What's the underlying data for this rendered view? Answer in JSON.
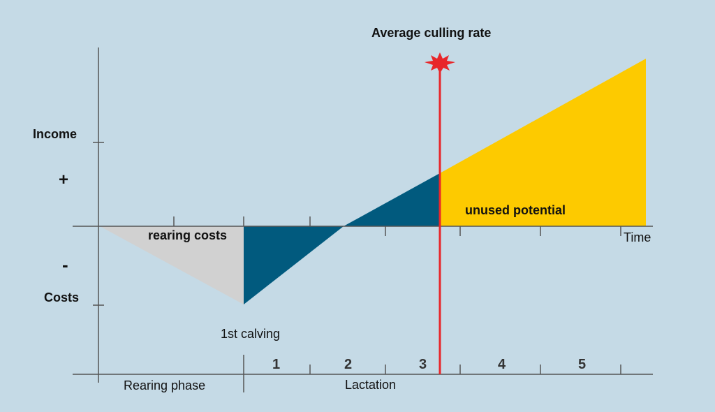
{
  "title": "Average culling rate",
  "yaxis": {
    "income_label": "Income",
    "plus_sign": "+",
    "minus_sign": "-",
    "costs_label": "Costs"
  },
  "xaxis": {
    "time_label": "Time"
  },
  "regions": {
    "rearing_costs": "rearing costs",
    "unused_potential": "unused potential"
  },
  "events": {
    "first_calving": "1st calving"
  },
  "phases": {
    "rearing": "Rearing phase",
    "lactation": "Lactation"
  },
  "lactation_numbers": [
    "1",
    "2",
    "3",
    "4",
    "5"
  ],
  "colors": {
    "background": "#c5dae6",
    "rearing_costs_fill": "#d1d1d1",
    "lactation_fill": "#015a7e",
    "unused_potential_fill": "#fdca00",
    "culling_line": "#e8262a",
    "axis": "#555555"
  }
}
